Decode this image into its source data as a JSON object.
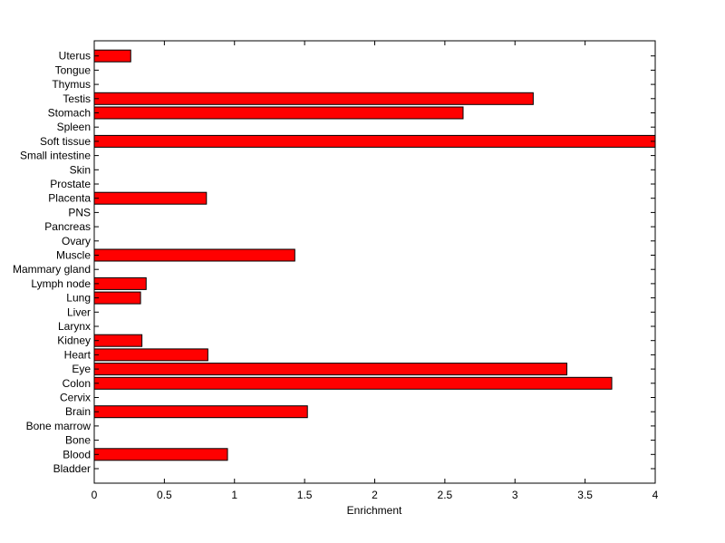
{
  "chart_data": {
    "type": "bar",
    "orientation": "horizontal",
    "categories": [
      "Bladder",
      "Blood",
      "Bone",
      "Bone marrow",
      "Brain",
      "Cervix",
      "Colon",
      "Eye",
      "Heart",
      "Kidney",
      "Larynx",
      "Liver",
      "Lung",
      "Lymph node",
      "Mammary gland",
      "Muscle",
      "Ovary",
      "Pancreas",
      "PNS",
      "Placenta",
      "Prostate",
      "Skin",
      "Small intestine",
      "Soft tissue",
      "Spleen",
      "Stomach",
      "Testis",
      "Thymus",
      "Tongue",
      "Uterus"
    ],
    "values": [
      0,
      0.95,
      0,
      0,
      1.52,
      0,
      3.69,
      3.37,
      0.81,
      0.34,
      0,
      0,
      0.33,
      0.37,
      0,
      1.43,
      0,
      0,
      0,
      0.8,
      0,
      0,
      0,
      4.0,
      0,
      2.63,
      3.13,
      0,
      0,
      0.26
    ],
    "xlabel": "Enrichment",
    "ylabel": "",
    "xlim": [
      0,
      4
    ],
    "xticks": [
      "0",
      "0.5",
      "1",
      "1.5",
      "2",
      "2.5",
      "3",
      "3.5",
      "4"
    ],
    "grid": false,
    "bar_color": "#ff0000",
    "edge_color": "#000000"
  }
}
